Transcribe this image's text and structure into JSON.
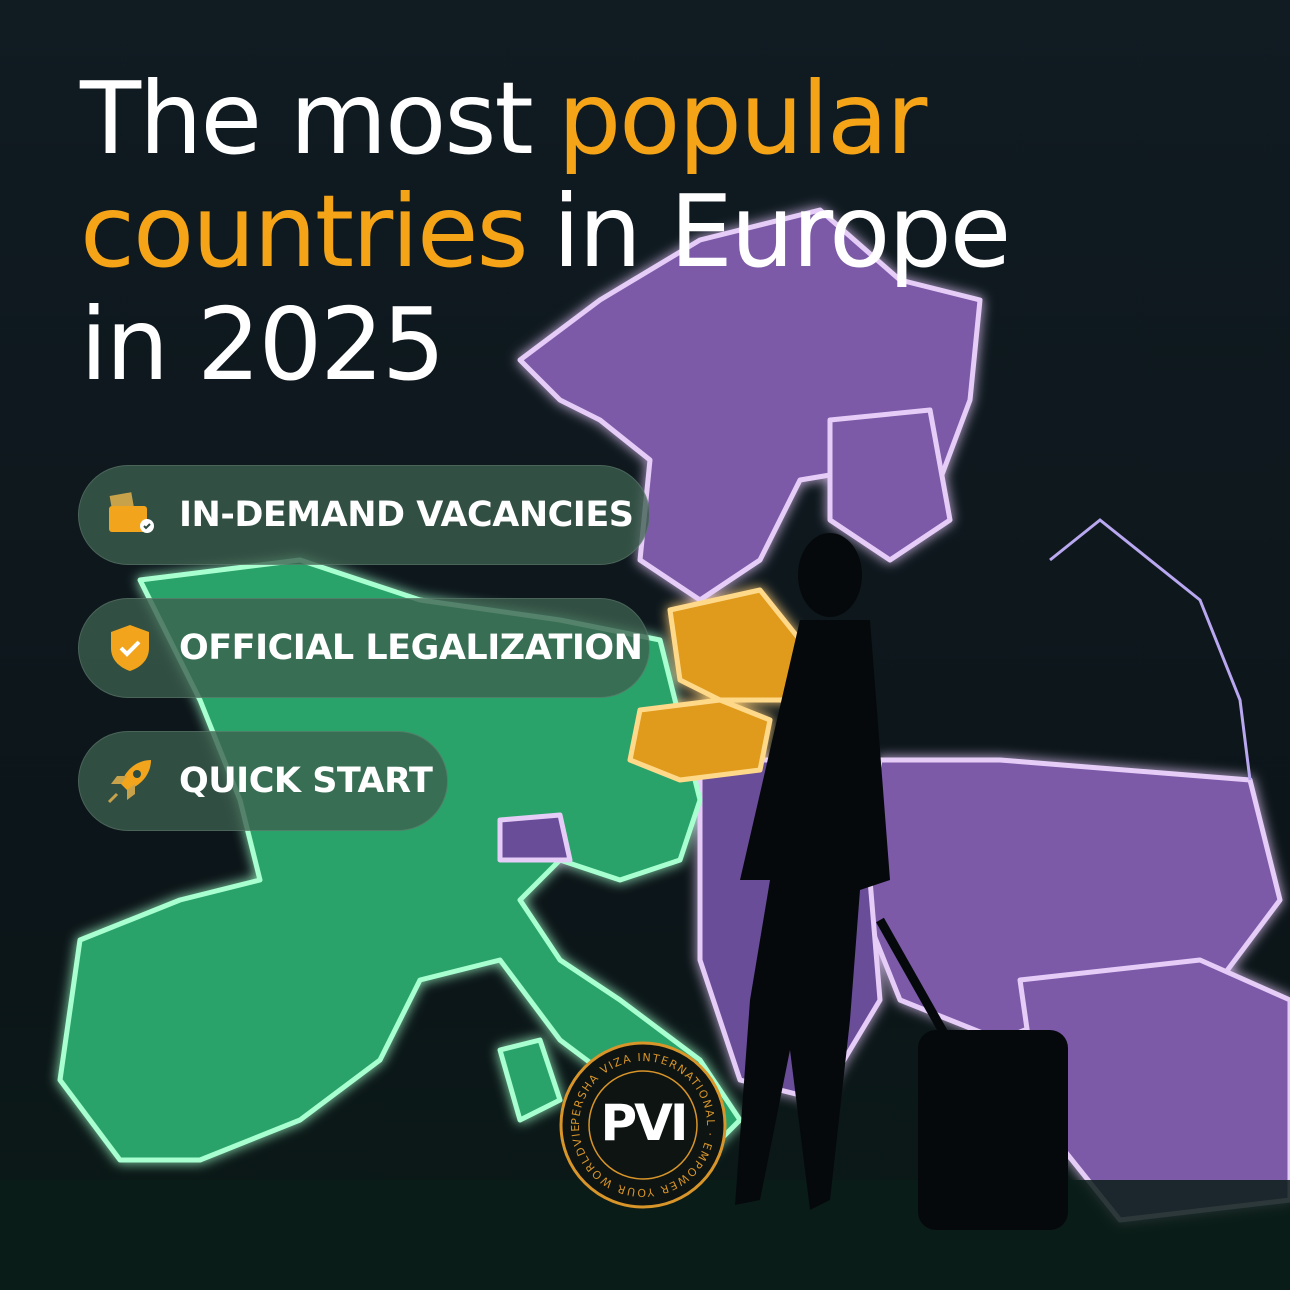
{
  "headline": [
    [
      {
        "text": "The most",
        "highlight": false
      },
      {
        "text": "popular",
        "highlight": true
      }
    ],
    [
      {
        "text": "countries",
        "highlight": true
      },
      {
        "text": "in Europe",
        "highlight": false
      }
    ],
    [
      {
        "text": "in 2025",
        "highlight": false
      }
    ]
  ],
  "features": [
    "IN-DEMAND VACANCIES",
    "OFFICIAL LEGALIZATION",
    "QUICK START"
  ],
  "logo": {
    "mark": "PVI",
    "ring_text": "PERSHA VIZA INTERNATIONAL · EMPOWER YOUR WORLDVIEW ·"
  }
}
